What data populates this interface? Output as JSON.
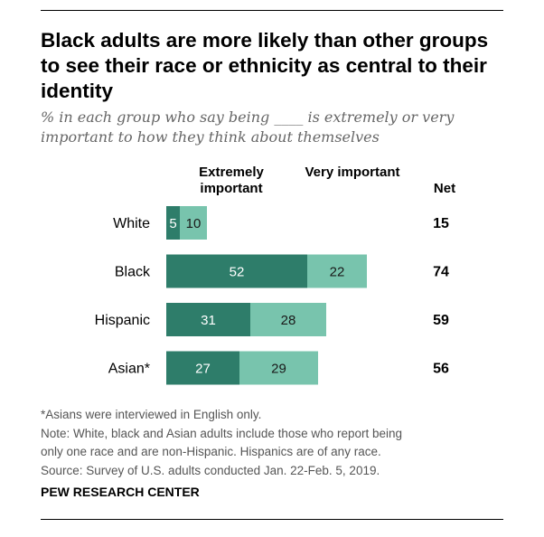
{
  "title": "Black adults are more likely than other groups to see their race or ethnicity as central to their identity",
  "subtitle": "% in each group who say being ____ is extremely or very important to how they think about themselves",
  "headers": {
    "extremely": "Extremely important",
    "very": "Very important",
    "net": "Net"
  },
  "colors": {
    "extremely": "#2e7d6a",
    "very": "#78c4ad"
  },
  "chart_data": {
    "type": "bar",
    "orientation": "horizontal",
    "stacked": true,
    "categories": [
      "White",
      "Black",
      "Hispanic",
      "Asian*"
    ],
    "series": [
      {
        "name": "Extremely important",
        "values": [
          5,
          52,
          31,
          27
        ]
      },
      {
        "name": "Very important",
        "values": [
          10,
          22,
          28,
          29
        ]
      }
    ],
    "net": [
      15,
      74,
      59,
      56
    ]
  },
  "notes": [
    "*Asians were interviewed in English only.",
    "Note: White, black and Asian adults include those who report being",
    "only one race and are non-Hispanic. Hispanics are of any race.",
    "Source: Survey of U.S. adults conducted Jan. 22-Feb. 5, 2019."
  ],
  "source_label": "PEW RESEARCH CENTER"
}
